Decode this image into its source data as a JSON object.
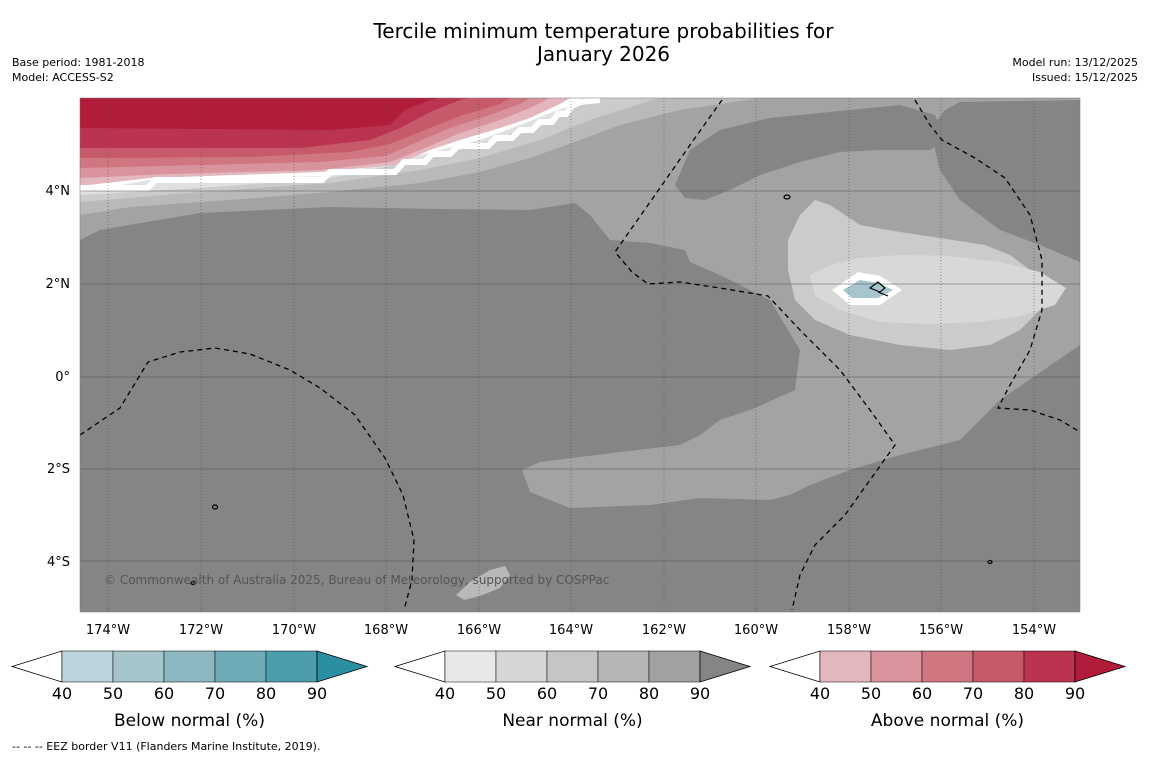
{
  "title": {
    "line1": "Tercile minimum temperature probabilities for",
    "line2": "January 2026"
  },
  "meta": {
    "base_period": "Base period: 1981-2018",
    "model": "Model: ACCESS-S2",
    "model_run": "Model run: 13/12/2025",
    "issued": "Issued: 15/12/2025"
  },
  "map": {
    "lat_labels": [
      "4°N",
      "2°N",
      "0°",
      "2°S",
      "4°S"
    ],
    "lon_labels": [
      "174°W",
      "172°W",
      "170°W",
      "168°W",
      "166°W",
      "164°W",
      "162°W",
      "160°W",
      "158°W",
      "156°W",
      "154°W"
    ],
    "copyright": "© Commonwealth of Australia 2025, Bureau of Meteorology, supported by COSPPac",
    "colors": {
      "ocean_base": "#858585",
      "near_70_80": "#a3a3a3",
      "near_60_70": "#b7b7b7",
      "near_50_60": "#cbcbcb",
      "near_40_50": "#d8d8d8",
      "above_90": "#b01c3a",
      "below_40_50": "#a6c5cc"
    }
  },
  "legends": [
    {
      "title": "Below normal (%)",
      "ticks": [
        "40",
        "50",
        "60",
        "70",
        "80",
        "90"
      ],
      "colors": [
        "#ffffff",
        "#bcd4db",
        "#a6c5cb",
        "#8bb8c0",
        "#6eabb7",
        "#4b9dac",
        "#2b8fa2"
      ]
    },
    {
      "title": "Near normal (%)",
      "ticks": [
        "40",
        "50",
        "60",
        "70",
        "80",
        "90"
      ],
      "colors": [
        "#ffffff",
        "#e8e8e8",
        "#d6d6d6",
        "#c5c5c5",
        "#b5b5b5",
        "#a2a2a2",
        "#858585"
      ]
    },
    {
      "title": "Above normal (%)",
      "ticks": [
        "40",
        "50",
        "60",
        "70",
        "80",
        "90"
      ],
      "colors": [
        "#ffffff",
        "#e3b7bd",
        "#d9939c",
        "#cf7681",
        "#c65a6a",
        "#ba3450",
        "#b01c3a"
      ]
    }
  ],
  "footnote": "--  --  -- EEZ border V11 (Flanders Marine Institute, 2019)."
}
